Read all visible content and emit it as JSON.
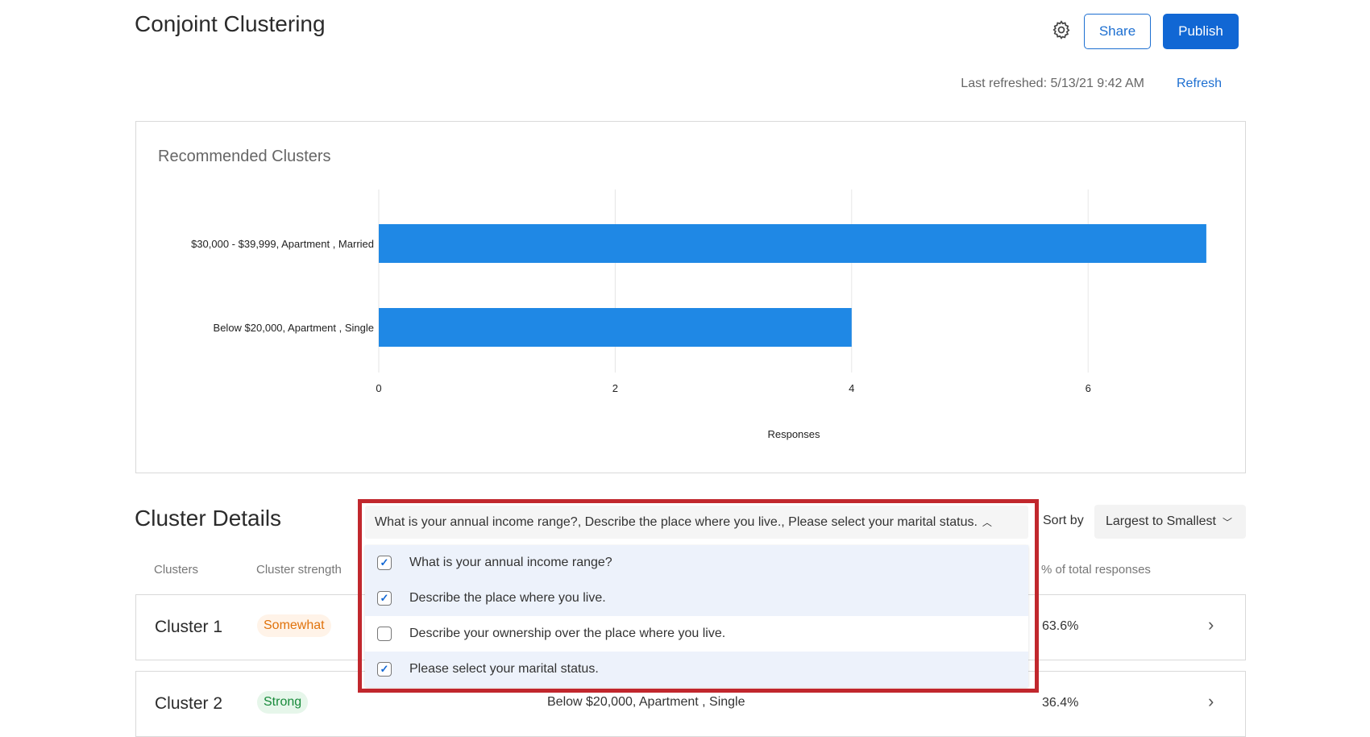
{
  "header": {
    "title": "Conjoint Clustering",
    "share_label": "Share",
    "publish_label": "Publish",
    "last_refreshed": "Last refreshed: 5/13/21 9:42 AM",
    "refresh_label": "Refresh",
    "settings_icon": "gear-icon"
  },
  "colors": {
    "accent": "#1167d4",
    "bar": "#1f88e5",
    "highlight": "#c1272d",
    "selected_option_bg": "#edf2fb"
  },
  "chart_card": {
    "title": "Recommended Clusters"
  },
  "chart_data": {
    "type": "bar",
    "orientation": "horizontal",
    "categories": [
      "$30,000 - $39,999, Apartment , Married",
      "Below $20,000, Apartment , Single"
    ],
    "values": [
      7,
      4
    ],
    "xlabel": "Responses",
    "ylabel": "",
    "xlim": [
      0,
      7
    ],
    "xticks": [
      "0",
      "2",
      "4",
      "6"
    ],
    "grid": "vertical"
  },
  "details": {
    "title": "Cluster Details",
    "sort_label": "Sort by",
    "sort_value": "Largest to Smallest",
    "columns": [
      "Clusters",
      "Cluster strength",
      "% of total responses"
    ],
    "rows": [
      {
        "name": "Cluster 1",
        "strength": "Somewhat",
        "description": "",
        "percent": "63.6%"
      },
      {
        "name": "Cluster 2",
        "strength": "Strong",
        "description": "Below $20,000, Apartment , Single",
        "percent": "36.4%"
      }
    ]
  },
  "question_select": {
    "value": "What is your annual income range?, Describe the place where you live., Please select your marital status.",
    "options": [
      {
        "label": "What is your annual income range?",
        "checked": true
      },
      {
        "label": "Describe the place where you live.",
        "checked": true
      },
      {
        "label": "Describe your ownership over the place where you live.",
        "checked": false
      },
      {
        "label": "Please select your marital status.",
        "checked": true
      }
    ]
  }
}
